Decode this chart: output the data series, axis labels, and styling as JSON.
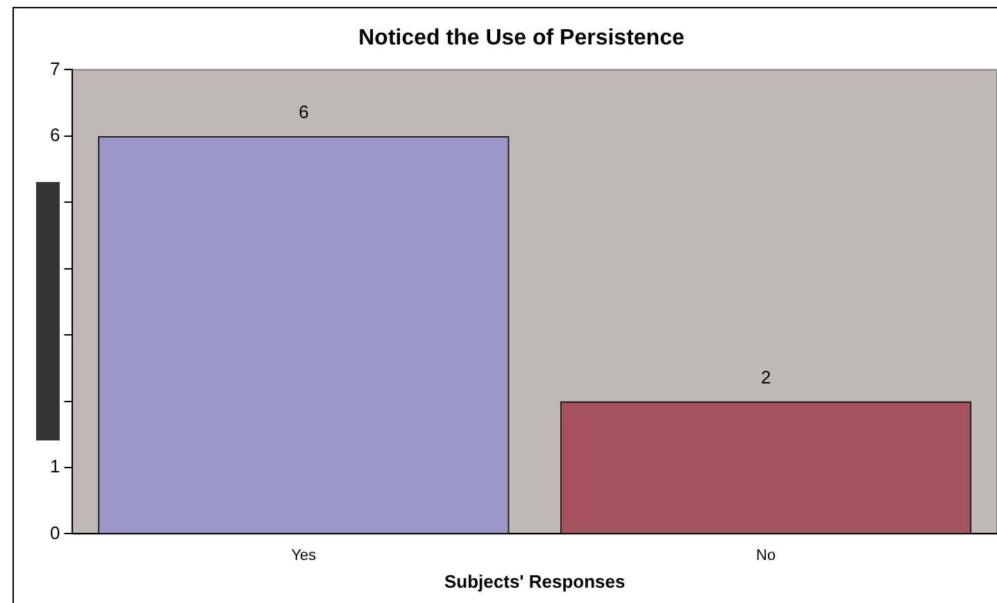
{
  "chart_data": {
    "type": "bar",
    "title": "Noticed the Use of Persistence",
    "xlabel": "Subjects' Responses",
    "categories": [
      "Yes",
      "No"
    ],
    "values": [
      6,
      2
    ],
    "colors": [
      "#9b97cb",
      "#a5525f"
    ],
    "ylim": [
      0,
      7
    ],
    "yticks": [
      0,
      1,
      {
        "value": 2,
        "label": null
      },
      {
        "value": 3,
        "label": null
      },
      {
        "value": 4,
        "label": null
      },
      {
        "value": 5,
        "label": null
      },
      6,
      7
    ],
    "grid": false,
    "legend": false,
    "data_labels": true
  }
}
